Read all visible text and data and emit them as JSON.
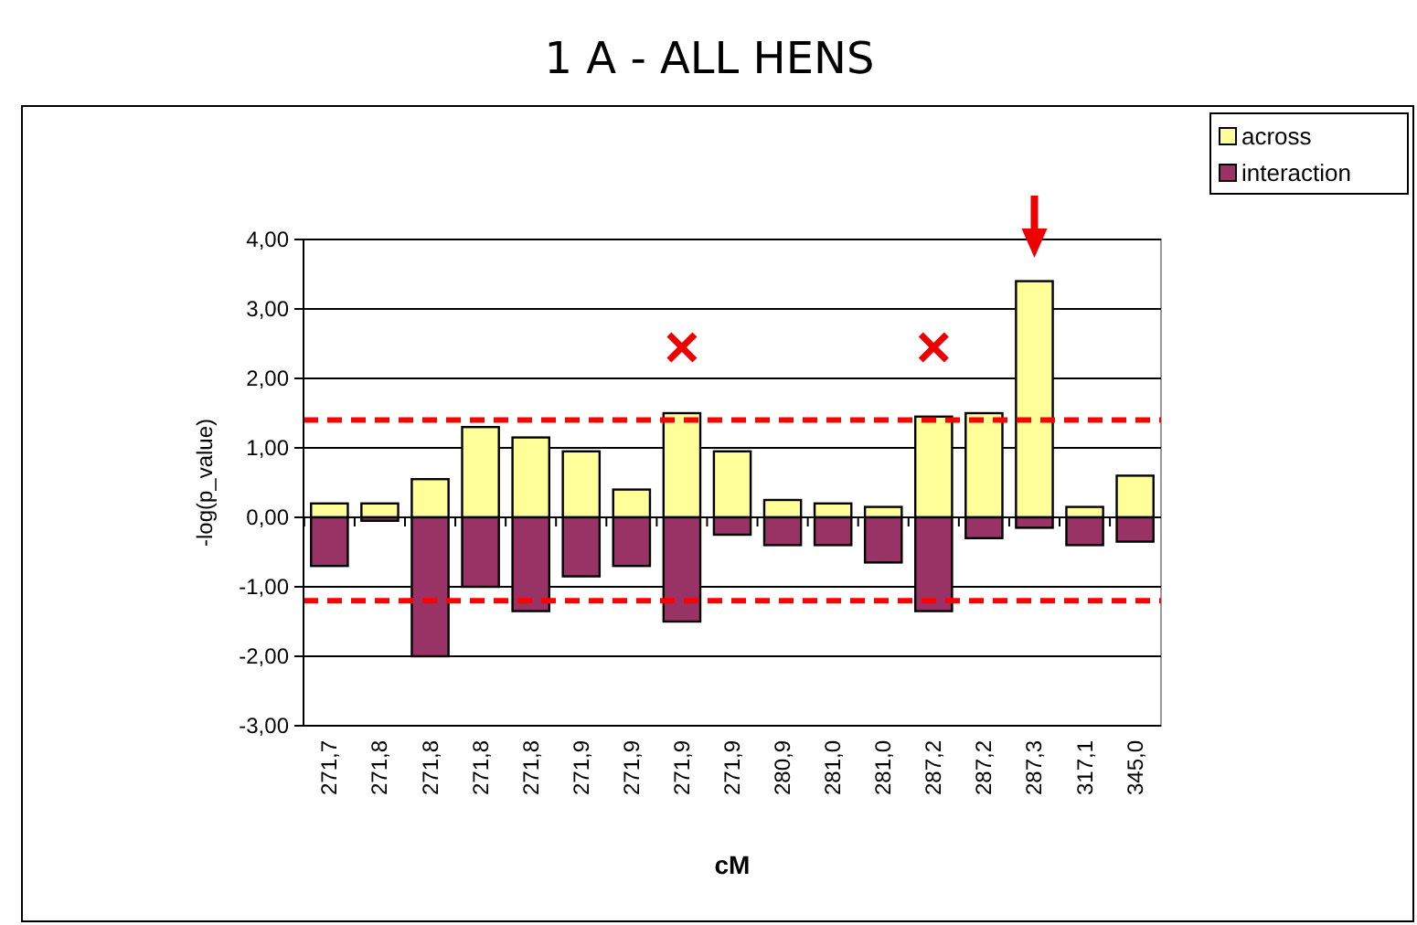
{
  "chart_data": {
    "type": "bar",
    "title": "1 A - ALL HENS",
    "xlabel": "cM",
    "ylabel": "-log(p_value)",
    "categories": [
      "271,7",
      "271,8",
      "271,8",
      "271,8",
      "271,8",
      "271,9",
      "271,9",
      "271,9",
      "271,9",
      "280,9",
      "281,0",
      "281,0",
      "287,2",
      "287,2",
      "287,3",
      "317,1",
      "345,0"
    ],
    "series": [
      {
        "name": "across",
        "color": "#ffff99",
        "values": [
          0.2,
          0.2,
          0.55,
          1.3,
          1.15,
          0.95,
          0.4,
          1.5,
          0.95,
          0.25,
          0.2,
          0.15,
          1.45,
          1.5,
          3.4,
          0.15,
          0.6
        ]
      },
      {
        "name": "interaction",
        "color": "#993366",
        "values": [
          -0.7,
          -0.05,
          -2.0,
          -1.0,
          -1.35,
          -0.85,
          -0.7,
          -1.5,
          -0.25,
          -0.4,
          -0.4,
          -0.65,
          -1.35,
          -0.3,
          -0.15,
          -0.4,
          -0.35
        ]
      }
    ],
    "ylim": [
      -3,
      4
    ],
    "yticks": [
      {
        "value": -3,
        "label": "-3,00"
      },
      {
        "value": -2,
        "label": "-2,00"
      },
      {
        "value": -1,
        "label": "-1,00"
      },
      {
        "value": 0,
        "label": "0,00"
      },
      {
        "value": 1,
        "label": "1,00"
      },
      {
        "value": 2,
        "label": "2,00"
      },
      {
        "value": 3,
        "label": "3,00"
      },
      {
        "value": 4,
        "label": "4,00"
      }
    ],
    "stacked": true,
    "grid": "y",
    "legend": "top right",
    "ref_lines": [
      {
        "axis": "y",
        "value": 1.4,
        "color": "#ff0000",
        "line_style": "dashed"
      },
      {
        "axis": "y",
        "value": -1.2,
        "color": "#ff0000",
        "line_style": "dashed"
      }
    ]
  }
}
